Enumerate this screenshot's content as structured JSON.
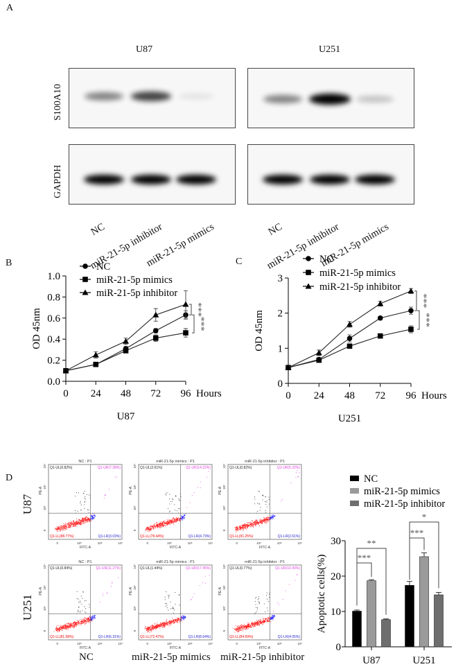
{
  "panel_labels": {
    "a": "A",
    "b": "B",
    "c": "C",
    "d": "D"
  },
  "western_blot": {
    "cell_lines": [
      "U87",
      "U251"
    ],
    "proteins": [
      "S100A10",
      "GAPDH"
    ],
    "lanes": [
      "NC",
      "miR-21-5p inhibitor",
      "miR-21-5p mimics"
    ],
    "band_intensity": {
      "U87": {
        "S100A10": [
          0.45,
          0.7,
          0.08
        ],
        "GAPDH": [
          1,
          1,
          0.95
        ]
      },
      "U251": {
        "S100A10": [
          0.45,
          1,
          0.2
        ],
        "GAPDH": [
          1,
          1,
          1
        ]
      }
    }
  },
  "chart_data": [
    {
      "type": "line",
      "title": "U87",
      "xlabel": "Hours",
      "ylabel": "OD 45nm",
      "x": [
        0,
        24,
        48,
        72,
        96
      ],
      "xticks": [
        "0",
        "24",
        "48",
        "72",
        "96"
      ],
      "ylim": [
        0,
        1.0
      ],
      "yticks": [
        "0.0",
        "0.2",
        "0.4",
        "0.6",
        "0.8",
        "1.0"
      ],
      "legend": "top-left",
      "series": [
        {
          "name": "NC",
          "marker": "circle",
          "values": [
            0.1,
            0.16,
            0.31,
            0.48,
            0.63
          ],
          "errors": [
            0.01,
            0.01,
            0.02,
            0.02,
            0.04
          ]
        },
        {
          "name": "miR-21-5p mimics",
          "marker": "square",
          "values": [
            0.1,
            0.16,
            0.29,
            0.41,
            0.46
          ],
          "errors": [
            0.01,
            0.01,
            0.01,
            0.03,
            0.04
          ]
        },
        {
          "name": "miR-21-5p inhibitor",
          "marker": "triangle",
          "values": [
            0.1,
            0.25,
            0.38,
            0.63,
            0.73
          ],
          "errors": [
            0.01,
            0.03,
            0.03,
            0.06,
            0.13
          ]
        }
      ],
      "significance": [
        "***",
        "***"
      ]
    },
    {
      "type": "line",
      "title": "U251",
      "xlabel": "Hours",
      "ylabel": "OD 45nm",
      "x": [
        0,
        24,
        48,
        72,
        96
      ],
      "xticks": [
        "0",
        "24",
        "48",
        "72",
        "96"
      ],
      "ylim": [
        0,
        3
      ],
      "yticks": [
        "0",
        "1",
        "2",
        "3"
      ],
      "legend": "top-left",
      "series": [
        {
          "name": "NC",
          "marker": "circle",
          "values": [
            0.45,
            0.68,
            1.28,
            1.86,
            2.07
          ],
          "errors": [
            0.02,
            0.04,
            0.1,
            0.05,
            0.1
          ]
        },
        {
          "name": "miR-21-5p mimics",
          "marker": "square",
          "values": [
            0.45,
            0.66,
            1.06,
            1.35,
            1.54
          ],
          "errors": [
            0.02,
            0.04,
            0.05,
            0.04,
            0.1
          ]
        },
        {
          "name": "miR-21-5p inhibitor",
          "marker": "triangle",
          "values": [
            0.45,
            0.87,
            1.68,
            2.27,
            2.63
          ],
          "errors": [
            0.02,
            0.08,
            0.08,
            0.07,
            0.07
          ]
        }
      ],
      "significance": [
        "***",
        "***"
      ]
    },
    {
      "type": "bar",
      "ylabel": "Apoptotic cells(%)",
      "categories": [
        "U87",
        "U251"
      ],
      "ylim": [
        0,
        30
      ],
      "yticks": [
        "0",
        "10",
        "20",
        "30"
      ],
      "legend": "top",
      "series": [
        {
          "name": "NC",
          "color": "#000000",
          "values": [
            10.1,
            17.4
          ],
          "errors": [
            0.3,
            1.1
          ]
        },
        {
          "name": "miR-21-5p mimics",
          "color": "#9a9a9a",
          "values": [
            18.7,
            25.5
          ],
          "errors": [
            0.3,
            1.1
          ]
        },
        {
          "name": "miR-21-5p inhibitor",
          "color": "#6e6e6e",
          "values": [
            7.7,
            14.7
          ],
          "errors": [
            0.2,
            0.7
          ]
        }
      ],
      "significance": {
        "U87": {
          "nc_vs_mimics": "***",
          "nc_vs_inhibitor": "**"
        },
        "U251": {
          "nc_vs_mimics": "***",
          "nc_vs_inhibitor": "*"
        }
      }
    }
  ],
  "flow": {
    "row_labels": [
      "U87",
      "U251"
    ],
    "col_labels": [
      "NC",
      "miR-21-5p mimics",
      "miR-21-5p inhibitor"
    ],
    "x_axis_label": "FITC-A",
    "y_axis_label": "PE-A",
    "ticks": [
      "0",
      "10⁵",
      "10⁶",
      "10⁷"
    ],
    "colors": {
      "LL": "#ff1a1a",
      "LR": "#1a1aff",
      "UR": "#e040e0",
      "UL": "#222222"
    },
    "plots": [
      [
        {
          "title": "NC : P1",
          "UL": "Q1-UL(0.82%)",
          "UR": "Q1-UR(7.38%)",
          "LL": "Q1-LL(88.77%)",
          "LR": "Q1-LR(3.03%)"
        },
        {
          "title": "miR-21-5p mimics : P1",
          "UL": "Q1-UL(2.61%)",
          "UR": "Q1-UR(14.22%)",
          "LL": "Q1-LL(78.44%)",
          "LR": "Q1-LR(4.73%)"
        },
        {
          "title": "miR-21-5p inhibitor : P1",
          "UL": "Q1-UL(0.82%)",
          "UR": "Q1-UR(5.32%)",
          "LL": "Q1-LL(91.25%)",
          "LR": "Q1-LR(2.61%)"
        }
      ],
      [
        {
          "title": "NC : P1",
          "UL": "Q1-UL(0.84%)",
          "UR": "Q1-UR(11.27%)",
          "LL": "Q1-LL(81.58%)",
          "LR": "Q1-LR(6.31%)"
        },
        {
          "title": "miR-21-5p mimics : P1",
          "UL": "Q1-UL(1.44%)",
          "UR": "Q1-UR(17.45%)",
          "LL": "Q1-LL(72.47%)",
          "LR": "Q1-LR(8.64%)"
        },
        {
          "title": "miR-21-5p inhibitor : P1",
          "UL": "Q1-UL(0.77%)",
          "UR": "Q1-UR(10.49%)",
          "LL": "Q1-LL(84.69%)",
          "LR": "Q1-LR(4.05%)"
        }
      ]
    ]
  }
}
